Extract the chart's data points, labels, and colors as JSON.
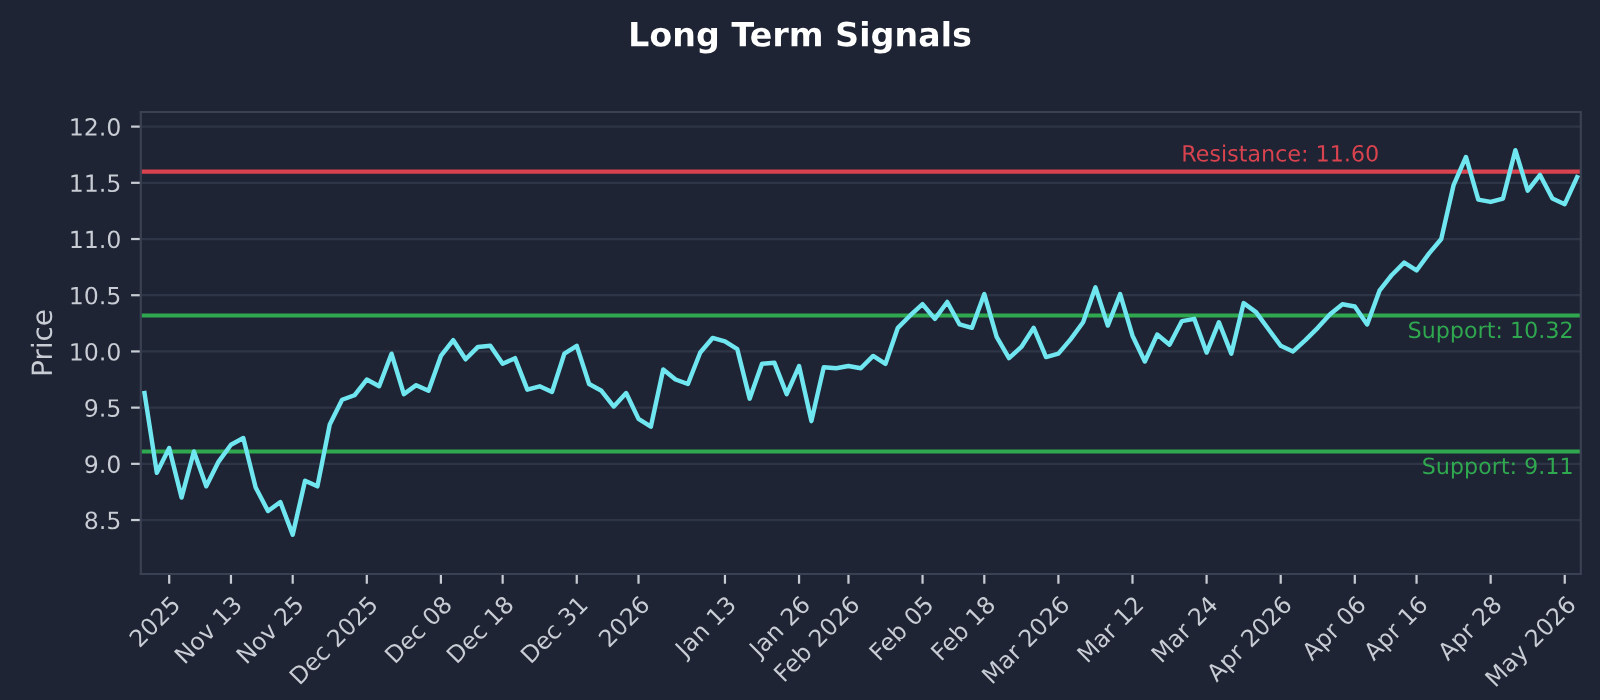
{
  "chart_data": {
    "type": "line",
    "title": "Long Term Signals",
    "ylabel": "Price",
    "categories": [
      null,
      null,
      "2025",
      null,
      null,
      null,
      null,
      "Nov 13",
      null,
      null,
      null,
      null,
      "Nov 25",
      null,
      null,
      null,
      null,
      null,
      "Dec 2025",
      null,
      null,
      null,
      null,
      null,
      "Dec 08",
      null,
      null,
      null,
      null,
      "Dec 18",
      null,
      null,
      null,
      null,
      null,
      "Dec 31",
      null,
      null,
      null,
      null,
      "2026",
      null,
      null,
      null,
      null,
      null,
      null,
      "Jan 13",
      null,
      null,
      null,
      null,
      null,
      "Jan 26",
      null,
      null,
      null,
      "Feb 2026",
      null,
      null,
      null,
      null,
      null,
      "Feb 05",
      null,
      null,
      null,
      null,
      "Feb 18",
      null,
      null,
      null,
      null,
      null,
      "Mar 2026",
      null,
      null,
      null,
      null,
      null,
      "Mar 12",
      null,
      null,
      null,
      null,
      null,
      "Mar 24",
      null,
      null,
      null,
      null,
      null,
      "Apr 2026",
      null,
      null,
      null,
      null,
      null,
      "Apr 06",
      null,
      null,
      null,
      null,
      "Apr 16",
      null,
      null,
      null,
      null,
      null,
      "Apr 28",
      null,
      null,
      null,
      null,
      null,
      "May 2026",
      null
    ],
    "series": [
      {
        "color": "#6fe6f0",
        "values": [
          9.63,
          8.92,
          9.14,
          8.7,
          9.11,
          8.8,
          9.02,
          9.17,
          9.23,
          8.79,
          8.58,
          8.66,
          8.37,
          8.85,
          8.8,
          9.35,
          9.57,
          9.61,
          9.75,
          9.69,
          9.98,
          9.62,
          9.7,
          9.65,
          9.96,
          10.1,
          9.93,
          10.04,
          10.05,
          9.89,
          9.94,
          9.66,
          9.69,
          9.64,
          9.98,
          10.05,
          9.71,
          9.65,
          9.51,
          9.63,
          9.4,
          9.33,
          9.84,
          9.75,
          9.71,
          9.99,
          10.12,
          10.09,
          10.02,
          9.58,
          9.89,
          9.9,
          9.62,
          9.87,
          9.38,
          9.86,
          9.85,
          9.87,
          9.85,
          9.96,
          9.89,
          10.21,
          10.32,
          10.42,
          10.29,
          10.44,
          10.24,
          10.21,
          10.51,
          10.13,
          9.94,
          10.04,
          10.21,
          9.95,
          9.98,
          10.11,
          10.26,
          10.57,
          10.23,
          10.51,
          10.14,
          9.91,
          10.15,
          10.06,
          10.27,
          10.29,
          9.99,
          10.26,
          9.98,
          10.43,
          10.35,
          10.2,
          10.05,
          10.0,
          10.1,
          10.21,
          10.33,
          10.42,
          10.4,
          10.24,
          10.54,
          10.68,
          10.79,
          10.72,
          10.87,
          11.0,
          11.48,
          11.73,
          11.35,
          11.33,
          11.36,
          11.79,
          11.43,
          11.57,
          11.36,
          11.31,
          11.55
        ]
      }
    ],
    "ylim": [
      8.02,
      12.13
    ],
    "yticks": [
      {
        "value": 8.5,
        "label": "8.5"
      },
      {
        "value": 9,
        "label": "9.0"
      },
      {
        "value": 9.5,
        "label": "9.5"
      },
      {
        "value": 10,
        "label": "10.0"
      },
      {
        "value": 10.5,
        "label": "10.5"
      },
      {
        "value": 11,
        "label": "11.0"
      },
      {
        "value": 11.5,
        "label": "11.5"
      },
      {
        "value": 12,
        "label": "12.0"
      }
    ],
    "grid": "y",
    "marker": "none",
    "line_style": "solid",
    "ref_lines": [
      {
        "axis": "y",
        "value": 11.6,
        "label": "Resistance: 11.60",
        "color": "#d9434f"
      },
      {
        "axis": "y",
        "value": 10.32,
        "label": "Support: 10.32",
        "color": "#2fa84f"
      },
      {
        "axis": "y",
        "value": 9.11,
        "label": "Support: 9.11",
        "color": "#2fa84f"
      }
    ]
  }
}
